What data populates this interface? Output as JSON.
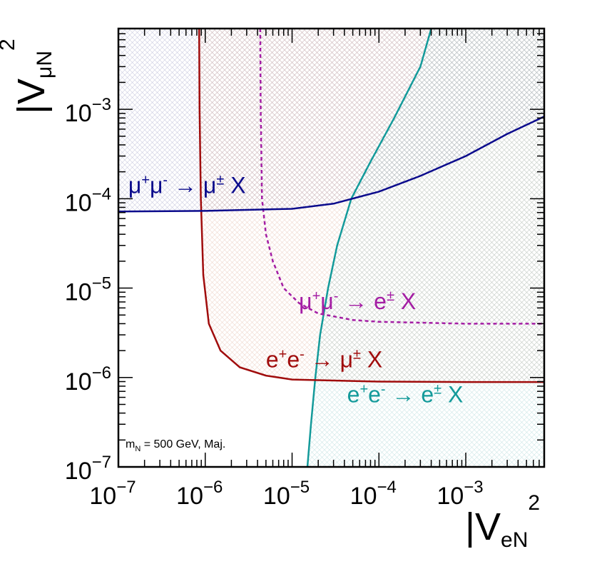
{
  "chart_data": {
    "type": "line",
    "xscale": "log",
    "yscale": "log",
    "xlim": [
      1e-07,
      0.008
    ],
    "ylim": [
      1e-07,
      0.008
    ],
    "xlabel": {
      "base": "|V",
      "sub": "eN",
      "sup": "2"
    },
    "ylabel": {
      "base": "|V",
      "sub": "μN",
      "sup": "2"
    },
    "xticks": [
      {
        "value": 1e-07,
        "mant": "10",
        "exp": "−7"
      },
      {
        "value": 1e-06,
        "mant": "10",
        "exp": "−6"
      },
      {
        "value": 1e-05,
        "mant": "10",
        "exp": "−5"
      },
      {
        "value": 0.0001,
        "mant": "10",
        "exp": "−4"
      },
      {
        "value": 0.001,
        "mant": "10",
        "exp": "−3"
      }
    ],
    "yticks": [
      {
        "value": 1e-07,
        "mant": "10",
        "exp": "−7"
      },
      {
        "value": 1e-06,
        "mant": "10",
        "exp": "−6"
      },
      {
        "value": 1e-05,
        "mant": "10",
        "exp": "−5"
      },
      {
        "value": 0.0001,
        "mant": "10",
        "exp": "−4"
      },
      {
        "value": 0.001,
        "mant": "10",
        "exp": "−3"
      }
    ],
    "annotation": {
      "m": "m",
      "sub": "N",
      "rest": " = 500 GeV, Maj."
    },
    "series": [
      {
        "name": "e+e- → e± X",
        "label_parts": [
          [
            "e",
            ""
          ],
          [
            "+",
            "sup"
          ],
          [
            "e",
            ""
          ],
          [
            "-",
            "sup"
          ],
          [
            " → e",
            ""
          ],
          [
            "±",
            "sup"
          ],
          [
            " X",
            ""
          ]
        ],
        "color": "#139a9a",
        "dash": false,
        "fill": "teal",
        "points": [
          [
            1.5e-05,
            1e-07
          ],
          [
            1.65e-05,
            3e-07
          ],
          [
            1.85e-05,
            1e-06
          ],
          [
            2.1e-05,
            3e-06
          ],
          [
            2.6e-05,
            1e-05
          ],
          [
            3.3e-05,
            3e-05
          ],
          [
            4.8e-05,
            0.0001
          ],
          [
            8e-05,
            0.00026
          ],
          [
            0.00015,
            0.0008
          ],
          [
            0.0003,
            0.003
          ],
          [
            0.0004,
            0.008
          ]
        ]
      },
      {
        "name": "e+e- → μ± X",
        "label_parts": [
          [
            "e",
            ""
          ],
          [
            "+",
            "sup"
          ],
          [
            "e",
            ""
          ],
          [
            "-",
            "sup"
          ],
          [
            " → μ",
            ""
          ],
          [
            "±",
            "sup"
          ],
          [
            " X",
            ""
          ]
        ],
        "color": "#a00c0c",
        "dash": false,
        "fill": "red",
        "points": [
          [
            8.5e-07,
            0.008
          ],
          [
            8.6e-07,
            0.001
          ],
          [
            8.9e-07,
            0.0001
          ],
          [
            9.5e-07,
            1.4e-05
          ],
          [
            1.1e-06,
            4e-06
          ],
          [
            1.5e-06,
            2e-06
          ],
          [
            2.5e-06,
            1.3e-06
          ],
          [
            5e-06,
            1.05e-06
          ],
          [
            1e-05,
            9.5e-07
          ],
          [
            0.0001,
            9e-07
          ],
          [
            0.001,
            8.9e-07
          ],
          [
            0.008,
            8.9e-07
          ]
        ]
      },
      {
        "name": "μ+μ- → e± X",
        "label_parts": [
          [
            "μ",
            ""
          ],
          [
            "+",
            "sup"
          ],
          [
            "μ",
            ""
          ],
          [
            "-",
            "sup"
          ],
          [
            " → e",
            ""
          ],
          [
            "±",
            "sup"
          ],
          [
            " X",
            ""
          ]
        ],
        "color": "#a41ea4",
        "dash": true,
        "fill": "none",
        "points": [
          [
            4.3e-06,
            0.008
          ],
          [
            4.35e-06,
            0.001
          ],
          [
            4.5e-06,
            0.0001
          ],
          [
            5e-06,
            4e-05
          ],
          [
            6e-06,
            2e-05
          ],
          [
            8e-06,
            1e-05
          ],
          [
            1.2e-05,
            6.8e-06
          ],
          [
            2e-05,
            5.2e-06
          ],
          [
            5e-05,
            4.4e-06
          ],
          [
            0.0001,
            4.2e-06
          ],
          [
            0.001,
            4e-06
          ],
          [
            0.008,
            4e-06
          ]
        ]
      },
      {
        "name": "μ+μ- → μ± X",
        "label_parts": [
          [
            "μ",
            ""
          ],
          [
            "+",
            "sup"
          ],
          [
            "μ",
            ""
          ],
          [
            "-",
            "sup"
          ],
          [
            " → μ",
            ""
          ],
          [
            "±",
            "sup"
          ],
          [
            " X",
            ""
          ]
        ],
        "color": "#0b0b8c",
        "dash": false,
        "fill": "blue",
        "points": [
          [
            1e-07,
            7.2e-05
          ],
          [
            1e-06,
            7.3e-05
          ],
          [
            1e-05,
            7.7e-05
          ],
          [
            3e-05,
            8.8e-05
          ],
          [
            0.0001,
            0.00012
          ],
          [
            0.0003,
            0.00018
          ],
          [
            0.001,
            0.0003
          ],
          [
            0.003,
            0.00053
          ],
          [
            0.008,
            0.00083
          ]
        ]
      }
    ],
    "labels": [
      {
        "series": 3,
        "x": 1.3e-07,
        "y": 0.000115
      },
      {
        "series": 2,
        "x": 1.2e-05,
        "y": 5.8e-06
      },
      {
        "series": 0,
        "x": 4.3e-05,
        "y": 5.3e-07
      },
      {
        "series": 1,
        "x": 5e-06,
        "y": 1.3e-06
      }
    ]
  }
}
